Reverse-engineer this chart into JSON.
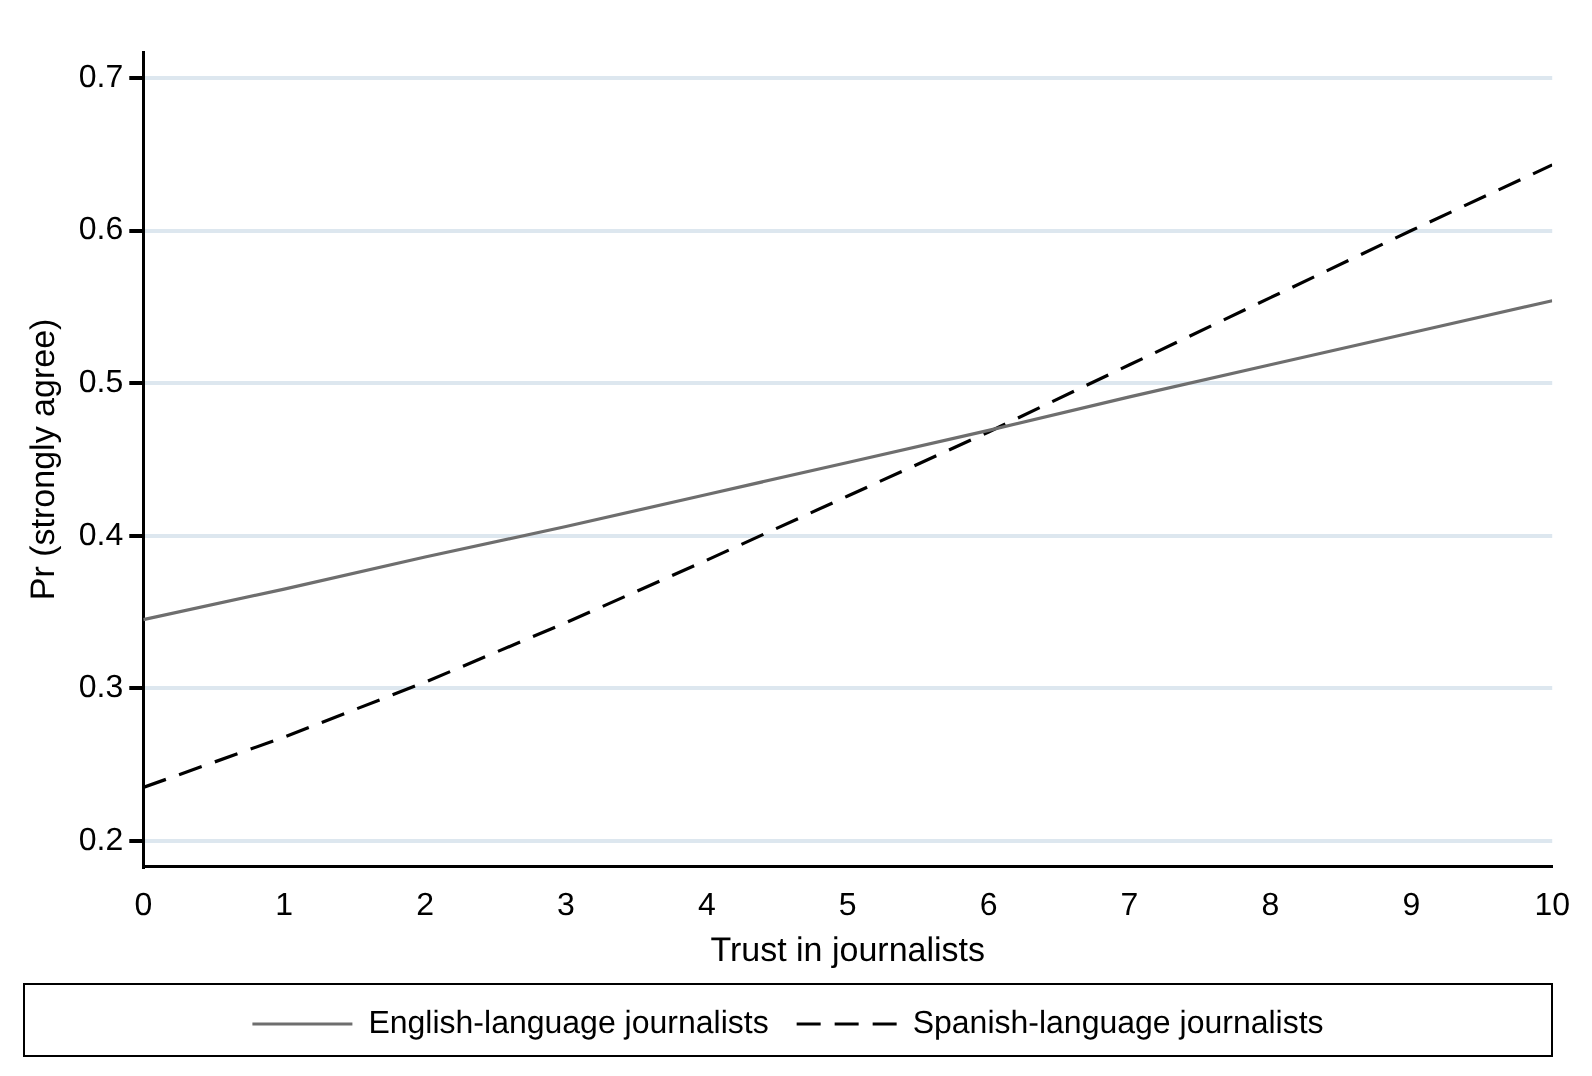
{
  "chart_data": {
    "type": "line",
    "xlabel": "Trust in journalists",
    "ylabel": "Pr (strongly agree)",
    "x": [
      0,
      1,
      2,
      3,
      4,
      5,
      6,
      7,
      8,
      9,
      10
    ],
    "series": [
      {
        "name": "English-language journalists",
        "color": "#6e6e6e",
        "line_style": "solid",
        "values": [
          0.345,
          0.365,
          0.386,
          0.406,
          0.427,
          0.448,
          0.469,
          0.491,
          0.512,
          0.533,
          0.554
        ]
      },
      {
        "name": "Spanish-language journalists",
        "color": "#000000",
        "line_style": "dashed",
        "values": [
          0.235,
          0.268,
          0.304,
          0.343,
          0.384,
          0.426,
          0.468,
          0.512,
          0.556,
          0.6,
          0.643
        ]
      }
    ],
    "xlim": [
      0,
      10
    ],
    "xticks": [
      0,
      1,
      2,
      3,
      4,
      5,
      6,
      7,
      8,
      9,
      10
    ],
    "ylim": [
      0.183,
      0.717
    ],
    "yticks": [
      0.2,
      0.3,
      0.4,
      0.5,
      0.6,
      0.7
    ],
    "grid": "y",
    "legend": "bottom",
    "marker": "none"
  }
}
